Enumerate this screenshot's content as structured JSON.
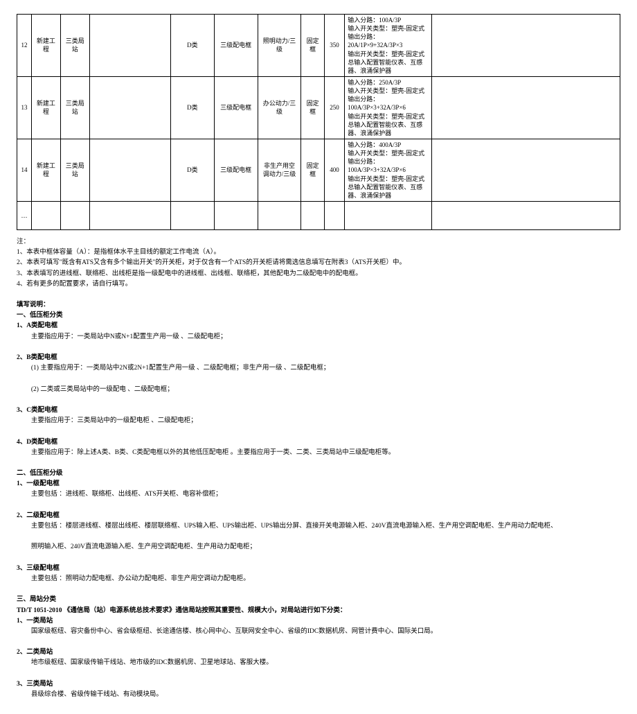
{
  "table": {
    "rows": [
      {
        "n": "12",
        "c2": "新建工程",
        "c3": "三类局站",
        "c4": "",
        "c5": "D类",
        "c6": "三级配电框",
        "c7": "照明动力/三级",
        "c8": "固定框",
        "c9": "350",
        "spec": "输入分路：100A/3P\n输入开关类型：塑壳-固定式\n输出分路：\n20A/1P×9+32A/3P×3\n输出开关类型：塑壳-固定式\n总输入配置智能仪表、互感器、浪涌保护器"
      },
      {
        "n": "13",
        "c2": "新建工程",
        "c3": "三类局站",
        "c4": "",
        "c5": "D类",
        "c6": "三级配电框",
        "c7": "办公动力/三级",
        "c8": "固定框",
        "c9": "250",
        "spec": "输入分路：250A/3P\n输入开关类型：塑壳-固定式\n输出分路：\n100A/3P×3+32A/3P×6\n输出开关类型：塑壳-固定式\n总输入配置智能仪表、互感器、浪涌保护器"
      },
      {
        "n": "14",
        "c2": "新建工程",
        "c3": "三类局站",
        "c4": "",
        "c5": "D类",
        "c6": "三级配电框",
        "c7": "非生产用空调动力/三级",
        "c8": "固定框",
        "c9": "400",
        "spec": "输入分路：400A/3P\n输入开关类型：塑壳-固定式\n输出分路：\n100A/3P×3+32A/3P×6\n输出开关类型：塑壳-固定式\n总输入配置智能仪表、互感器、浪涌保护器"
      },
      {
        "n": "…",
        "c2": "",
        "c3": "",
        "c4": "",
        "c5": "",
        "c6": "",
        "c7": "",
        "c8": "",
        "c9": "",
        "spec": ""
      }
    ]
  },
  "notes": {
    "pre": [
      "注：",
      "1、本表中框体容量（A）：是指框体水平主目线的额定工作电流（A）。",
      "2、本表可填写\"既含有ATS又含有多个输出开关\"的开关柜，对于仅含有一个ATS的开关柜请将需选信息填写在附表3（ATS开关柜）中。",
      "3、本表填写的进线框、联络柜、出线柜是指一级配电中的进线框、出线框、联络柜，其他配电为二级配电中的配电框。",
      "4、若有更多的配置要求，请自行填写。"
    ],
    "tit": "填写说明：",
    "s1_t": "一、低压柜分类",
    "s1a_t": "1、A类配电框",
    "s1a_b": "主要指应用于：一类局站中N或N+1配置生产用一级 、二级配电柜；",
    "s1b_t": "2、B类配电框",
    "s1b_b1": "(1) 主要指应用于：一类局站中2N或2N+1配置生产用一级 、二级配电框；非生产用一级 、二级配电框；",
    "s1b_b2": "(2) 二类或三类局站中的一级配电 、二级配电框；",
    "s1c_t": "3、C类配电框",
    "s1c_b": "主要指应用于：三类局站中的一级配电柜 、二级配电柜；",
    "s1d_t": "4、D类配电框",
    "s1d_b": "主要指应用于：除上述A类、B类、C类配电框以外的其他低压配电柜 。主要指应用于一类、二类、三类局站中三级配电柜等。",
    "s2_t": "二、低压柜分级",
    "s2a_t": "1、一级配电框",
    "s2a_b": "主要包括 ：进线柜、联络柜、出线柜、ATS开关柜、电容补偿柜；",
    "s2b_t": "2、二级配电框",
    "s2b_b1": "主要包括 ：楼层进线框、楼层出线柜、楼层联络框、UPS输入柜、UPS输出柜、UPS输出分屏、直接开关电源输入柜、240V直流电源输入柜、生产用空调配电柜、生产用动力配电柜、",
    "s2b_b2": "照明输入柜、240V直流电源输入柜、生产用空调配电柜、生产用动力配电柜；",
    "s2c_t": "3、三级配电框",
    "s2c_b": "主要包括 ：照明动力配电框、办公动力配电柜、非生产用空调动力配电柜。",
    "s3_t": "三、局站分类",
    "s3_std": "TD/T 1051-2010 《通信局（站）电源系统总技术要求》通信局站按照其重要性、规模大小，对局站进行如下分类：",
    "s3a_t": "1、一类局站",
    "s3a_b": "国家级枢纽、容灾备份中心、省会级枢纽、长途通信楼、核心网中心、互联网安全中心、省级的IDC数据机房、网管计费中心、国际关口局。",
    "s3b_t": "2、二类局站",
    "s3b_b": "地市级枢纽、国家级传输干线站、地市级的IDC数据机房、卫星地球站、客服大楼。",
    "s3c_t": "3、三类局站",
    "s3c_b": "县级综合楼、省级传输干线站、有动模块局。"
  }
}
